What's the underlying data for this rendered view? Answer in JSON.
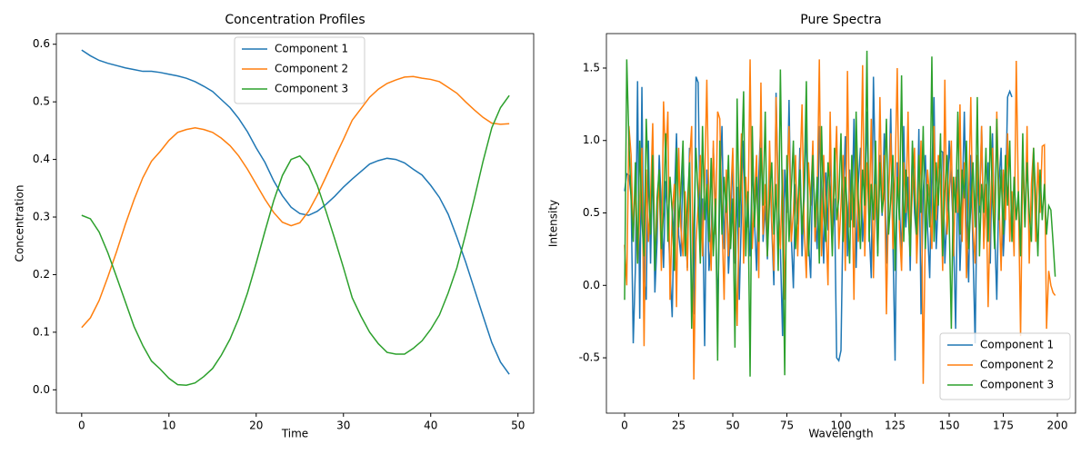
{
  "chart_data": [
    {
      "type": "line",
      "title": "Concentration Profiles",
      "xlabel": "Time",
      "ylabel": "Concentration",
      "xlim": [
        -2.9,
        51.8
      ],
      "xticks": [
        0,
        10,
        20,
        30,
        40,
        50
      ],
      "ylim": [
        -0.0405,
        0.6185
      ],
      "yticks": [
        {
          "value": 0,
          "label": "0.0"
        },
        0.1,
        0.2,
        0.3,
        0.4,
        0.5,
        0.6
      ],
      "legend": "upper center",
      "series": [
        {
          "name": "Component 1",
          "color": "#1f77b4",
          "values": [
            0.59,
            0.58,
            0.572,
            0.567,
            0.563,
            0.559,
            0.556,
            0.553,
            0.553,
            0.551,
            0.548,
            0.545,
            0.541,
            0.535,
            0.527,
            0.518,
            0.504,
            0.49,
            0.471,
            0.448,
            0.42,
            0.395,
            0.363,
            0.337,
            0.317,
            0.306,
            0.303,
            0.31,
            0.322,
            0.336,
            0.352,
            0.366,
            0.379,
            0.392,
            0.398,
            0.402,
            0.4,
            0.394,
            0.383,
            0.373,
            0.355,
            0.334,
            0.305,
            0.265,
            0.222,
            0.175,
            0.128,
            0.082,
            0.048,
            0.027
          ]
        },
        {
          "name": "Component 2",
          "color": "#ff7f0e",
          "values": [
            0.108,
            0.125,
            0.155,
            0.196,
            0.24,
            0.287,
            0.33,
            0.368,
            0.397,
            0.414,
            0.433,
            0.447,
            0.452,
            0.455,
            0.452,
            0.447,
            0.437,
            0.424,
            0.406,
            0.383,
            0.357,
            0.331,
            0.308,
            0.291,
            0.285,
            0.29,
            0.31,
            0.338,
            0.37,
            0.403,
            0.435,
            0.468,
            0.488,
            0.508,
            0.522,
            0.532,
            0.538,
            0.543,
            0.544,
            0.541,
            0.539,
            0.535,
            0.525,
            0.515,
            0.5,
            0.486,
            0.473,
            0.463,
            0.461,
            0.462
          ]
        },
        {
          "name": "Component 3",
          "color": "#2ca02c",
          "values": [
            0.303,
            0.297,
            0.274,
            0.238,
            0.196,
            0.153,
            0.11,
            0.077,
            0.05,
            0.036,
            0.02,
            0.009,
            0.008,
            0.012,
            0.023,
            0.037,
            0.06,
            0.088,
            0.124,
            0.168,
            0.22,
            0.275,
            0.328,
            0.372,
            0.4,
            0.406,
            0.389,
            0.355,
            0.31,
            0.262,
            0.212,
            0.16,
            0.128,
            0.1,
            0.08,
            0.065,
            0.062,
            0.062,
            0.072,
            0.085,
            0.105,
            0.13,
            0.168,
            0.212,
            0.27,
            0.332,
            0.397,
            0.455,
            0.49,
            0.511
          ]
        }
      ]
    },
    {
      "type": "line",
      "title": "Pure Spectra",
      "xlabel": "Wavelength",
      "ylabel": "Intensity",
      "xlim": [
        -8.4,
        208.4
      ],
      "xticks": [
        0,
        25,
        50,
        75,
        100,
        125,
        150,
        175,
        200
      ],
      "ylim": [
        -0.882,
        1.738
      ],
      "yticks": [
        -0.5,
        {
          "value": 0,
          "label": "0.0"
        },
        0.5,
        {
          "value": 1,
          "label": "1.0"
        },
        1.5
      ],
      "legend": "lower right",
      "series": [
        {
          "name": "Component 1",
          "color": "#1f77b4",
          "values": [
            0.65,
            0.77,
            0.76,
            0.62,
            -0.4,
            0.12,
            1.41,
            -0.23,
            1.37,
            0.05,
            -0.1,
            1.0,
            0.15,
            0.88,
            -0.05,
            0.3,
            0.9,
            0.55,
            0.12,
            0.72,
            0.48,
            0.1,
            -0.22,
            0.6,
            1.05,
            0.35,
            0.2,
            0.85,
            0.47,
            0.12,
            0.95,
            -0.15,
            -0.2,
            1.44,
            1.4,
            0.3,
            0.6,
            -0.42,
            0.8,
            0.1,
            0.33,
            0.95,
            0.5,
            -0.2,
            0.6,
            1.1,
            0.25,
            0.7,
            0.08,
            0.4,
            0.9,
            0.15,
            0.68,
            -0.1,
            0.5,
            1.0,
            0.3,
            0.6,
            0.2,
            0.85,
            0.45,
            0.1,
            0.75,
            1.15,
            0.3,
            0.55,
            0.18,
            0.9,
            0.4,
            0.0,
            1.33,
            0.62,
            0.25,
            -0.35,
            0.8,
            0.5,
            1.28,
            0.35,
            -0.02,
            0.7,
            0.42,
            0.95,
            0.2,
            0.6,
            1.12,
            0.3,
            0.05,
            0.85,
            0.5,
            0.25,
            1.1,
            0.65,
            0.15,
            0.78,
            0.38,
            0.95,
            0.3,
            0.6,
            -0.5,
            -0.52,
            -0.45,
            0.55,
            1.03,
            0.2,
            0.8,
            0.45,
            1.15,
            0.12,
            0.7,
            0.95,
            0.3,
            0.58,
            1.2,
            0.4,
            0.05,
            1.44,
            0.65,
            0.22,
            0.9,
            0.48,
            1.05,
            0.15,
            0.6,
            1.22,
            0.3,
            -0.52,
            0.85,
            0.55,
            0.2,
            1.1,
            0.4,
            0.75,
            0.1,
            0.95,
            0.5,
            0.3,
            1.08,
            -0.2,
            0.65,
            0.9,
            0.4,
            0.05,
            0.78,
            1.3,
            0.25,
            0.6,
            0.93,
            0.92,
            0.15,
            0.5,
            1.0,
            0.7,
            0.35,
            -0.3,
            0.8,
            0.1,
            0.55,
            1.2,
            0.45,
            0.02,
            0.9,
            0.25,
            -0.4,
            0.75,
            0.5,
            1.1,
            0.3,
            0.6,
            0.85,
            0.15,
            1.05,
            0.4,
            -0.1,
            0.7,
            0.95,
            0.2,
            0.55,
            1.3,
            1.34,
            1.3
          ]
        },
        {
          "name": "Component 2",
          "color": "#ff7f0e",
          "values": [
            0.28,
            0.0,
            1.1,
            0.9,
            0.35,
            0.7,
            0.15,
            0.5,
            0.95,
            -0.42,
            0.8,
            0.3,
            0.6,
            1.12,
            0.2,
            0.45,
            0.75,
            0.1,
            1.27,
            0.85,
            1.2,
            -0.1,
            0.5,
            0.7,
            -0.15,
            0.95,
            0.4,
            0.2,
            0.65,
            0.1,
            0.85,
            1.1,
            -0.65,
            0.3,
            0.55,
            0.9,
            0.2,
            0.7,
            1.42,
            0.5,
            0.1,
            1.0,
            0.35,
            1.2,
            1.15,
            0.45,
            -0.1,
            0.8,
            0.2,
            0.6,
            0.95,
            0.3,
            -0.28,
            0.5,
            1.05,
            0.15,
            0.75,
            0.4,
            1.56,
            0.25,
            0.6,
            0.9,
            0.05,
            1.4,
            0.35,
            0.7,
            0.2,
            1.0,
            0.45,
            0.1,
            1.3,
            0.55,
            0.25,
            0.8,
            -0.1,
            0.65,
            1.1,
            0.3,
            0.5,
            0.9,
            0.2,
            0.75,
            1.25,
            0.4,
            0.05,
            0.85,
            0.55,
            1.0,
            0.3,
            0.6,
            1.56,
            0.2,
            0.9,
            0.45,
            0.0,
            1.2,
            0.35,
            0.7,
            1.1,
            0.25,
            0.55,
            0.9,
            0.1,
            1.48,
            0.4,
            0.75,
            -0.1,
            1.0,
            0.3,
            0.6,
            1.52,
            0.2,
            0.85,
            0.45,
            1.15,
            0.05,
            0.7,
            0.35,
            1.3,
            0.5,
            0.9,
            -0.2,
            0.6,
            1.05,
            0.25,
            0.75,
            1.5,
            0.4,
            0.1,
            0.85,
            0.5,
            1.2,
            0.3,
            0.65,
            0.95,
            0.15,
            0.55,
            1.0,
            -0.68,
            0.4,
            0.8,
            0.6,
            0.25,
            1.1,
            0.45,
            0.9,
            0.7,
            0.1,
            1.42,
            0.35,
            0.6,
            1.0,
            0.2,
            0.75,
            0.5,
            1.25,
            0.3,
            0.85,
            0.05,
            0.6,
            1.3,
            0.4,
            0.15,
            0.9,
            0.55,
            1.1,
            0.25,
            0.7,
            -0.15,
            0.5,
            0.95,
            0.35,
            1.2,
            0.6,
            0.1,
            0.8,
            0.45,
            1.05,
            0.3,
            0.65,
            0.2,
            1.55,
            0.6,
            -0.35,
            0.9,
            0.4,
            1.1,
            0.15,
            0.7,
            0.95,
            0.3,
            0.85,
            0.5,
            0.96,
            0.97,
            -0.3,
            0.1,
            0.0,
            -0.05,
            -0.07
          ]
        },
        {
          "name": "Component 3",
          "color": "#2ca02c",
          "values": [
            -0.1,
            1.56,
            1.0,
            0.6,
            0.3,
            0.85,
            0.15,
            1.0,
            0.45,
            0.2,
            1.15,
            0.7,
            0.35,
            0.9,
            0.1,
            0.6,
            0.8,
            0.25,
            0.5,
            1.05,
            0.3,
            0.75,
            0.5,
            0.1,
            0.95,
            0.4,
            0.65,
            1.0,
            0.2,
            0.55,
            0.85,
            -0.3,
            0.4,
            0.95,
            0.6,
            0.15,
            1.1,
            0.45,
            0.7,
            0.3,
            0.88,
            0.2,
            0.6,
            -0.52,
            1.0,
            0.35,
            0.75,
            0.5,
            0.9,
            0.25,
            0.6,
            -0.43,
            1.29,
            0.4,
            0.8,
            1.34,
            0.2,
            0.65,
            -0.63,
            1.1,
            0.4,
            0.75,
            0.3,
            0.95,
            0.55,
            1.2,
            0.2,
            0.6,
            0.85,
            0.35,
            0.7,
            0.1,
            1.49,
            0.45,
            -0.62,
            0.9,
            0.3,
            0.65,
            1.0,
            0.25,
            0.55,
            0.8,
            0.35,
            0.7,
            1.41,
            0.2,
            0.6,
            0.9,
            0.4,
            0.75,
            0.15,
            1.1,
            0.5,
            0.3,
            0.85,
            0.65,
            0.2,
            0.95,
            0.45,
            0.6,
            1.05,
            0.3,
            0.75,
            0.5,
            0.15,
            0.9,
            0.4,
            1.2,
            0.6,
            0.25,
            0.8,
            0.55,
            1.62,
            0.3,
            0.7,
            0.45,
            1.0,
            0.2,
            0.85,
            0.5,
            0.65,
            1.15,
            0.35,
            0.6,
            0.9,
            0.1,
            0.75,
            0.45,
            1.45,
            0.3,
            0.8,
            0.55,
            0.2,
            1.0,
            0.6,
            0.35,
            0.9,
            0.5,
            1.1,
            0.25,
            0.7,
            0.4,
            1.58,
            0.3,
            0.85,
            0.55,
            1.05,
            0.2,
            0.65,
            0.9,
            0.45,
            -0.3,
            0.75,
            0.5,
            1.2,
            0.35,
            0.8,
            0.6,
            1.0,
            0.25,
            0.55,
            0.85,
            0.4,
            1.3,
            0.2,
            0.7,
            0.5,
            0.95,
            0.3,
            1.1,
            0.6,
            0.25,
            1.15,
            0.45,
            0.8,
            0.35,
            0.9,
            0.55,
            1.0,
            0.3,
            0.75,
            0.45,
            0.65,
            0.2,
            1.05,
            0.4,
            0.85,
            0.5,
            0.3,
            0.95,
            0.6,
            0.2,
            0.8,
            0.45,
            0.7,
            0.35,
            0.55,
            0.52,
            0.3,
            0.06
          ]
        }
      ]
    }
  ]
}
